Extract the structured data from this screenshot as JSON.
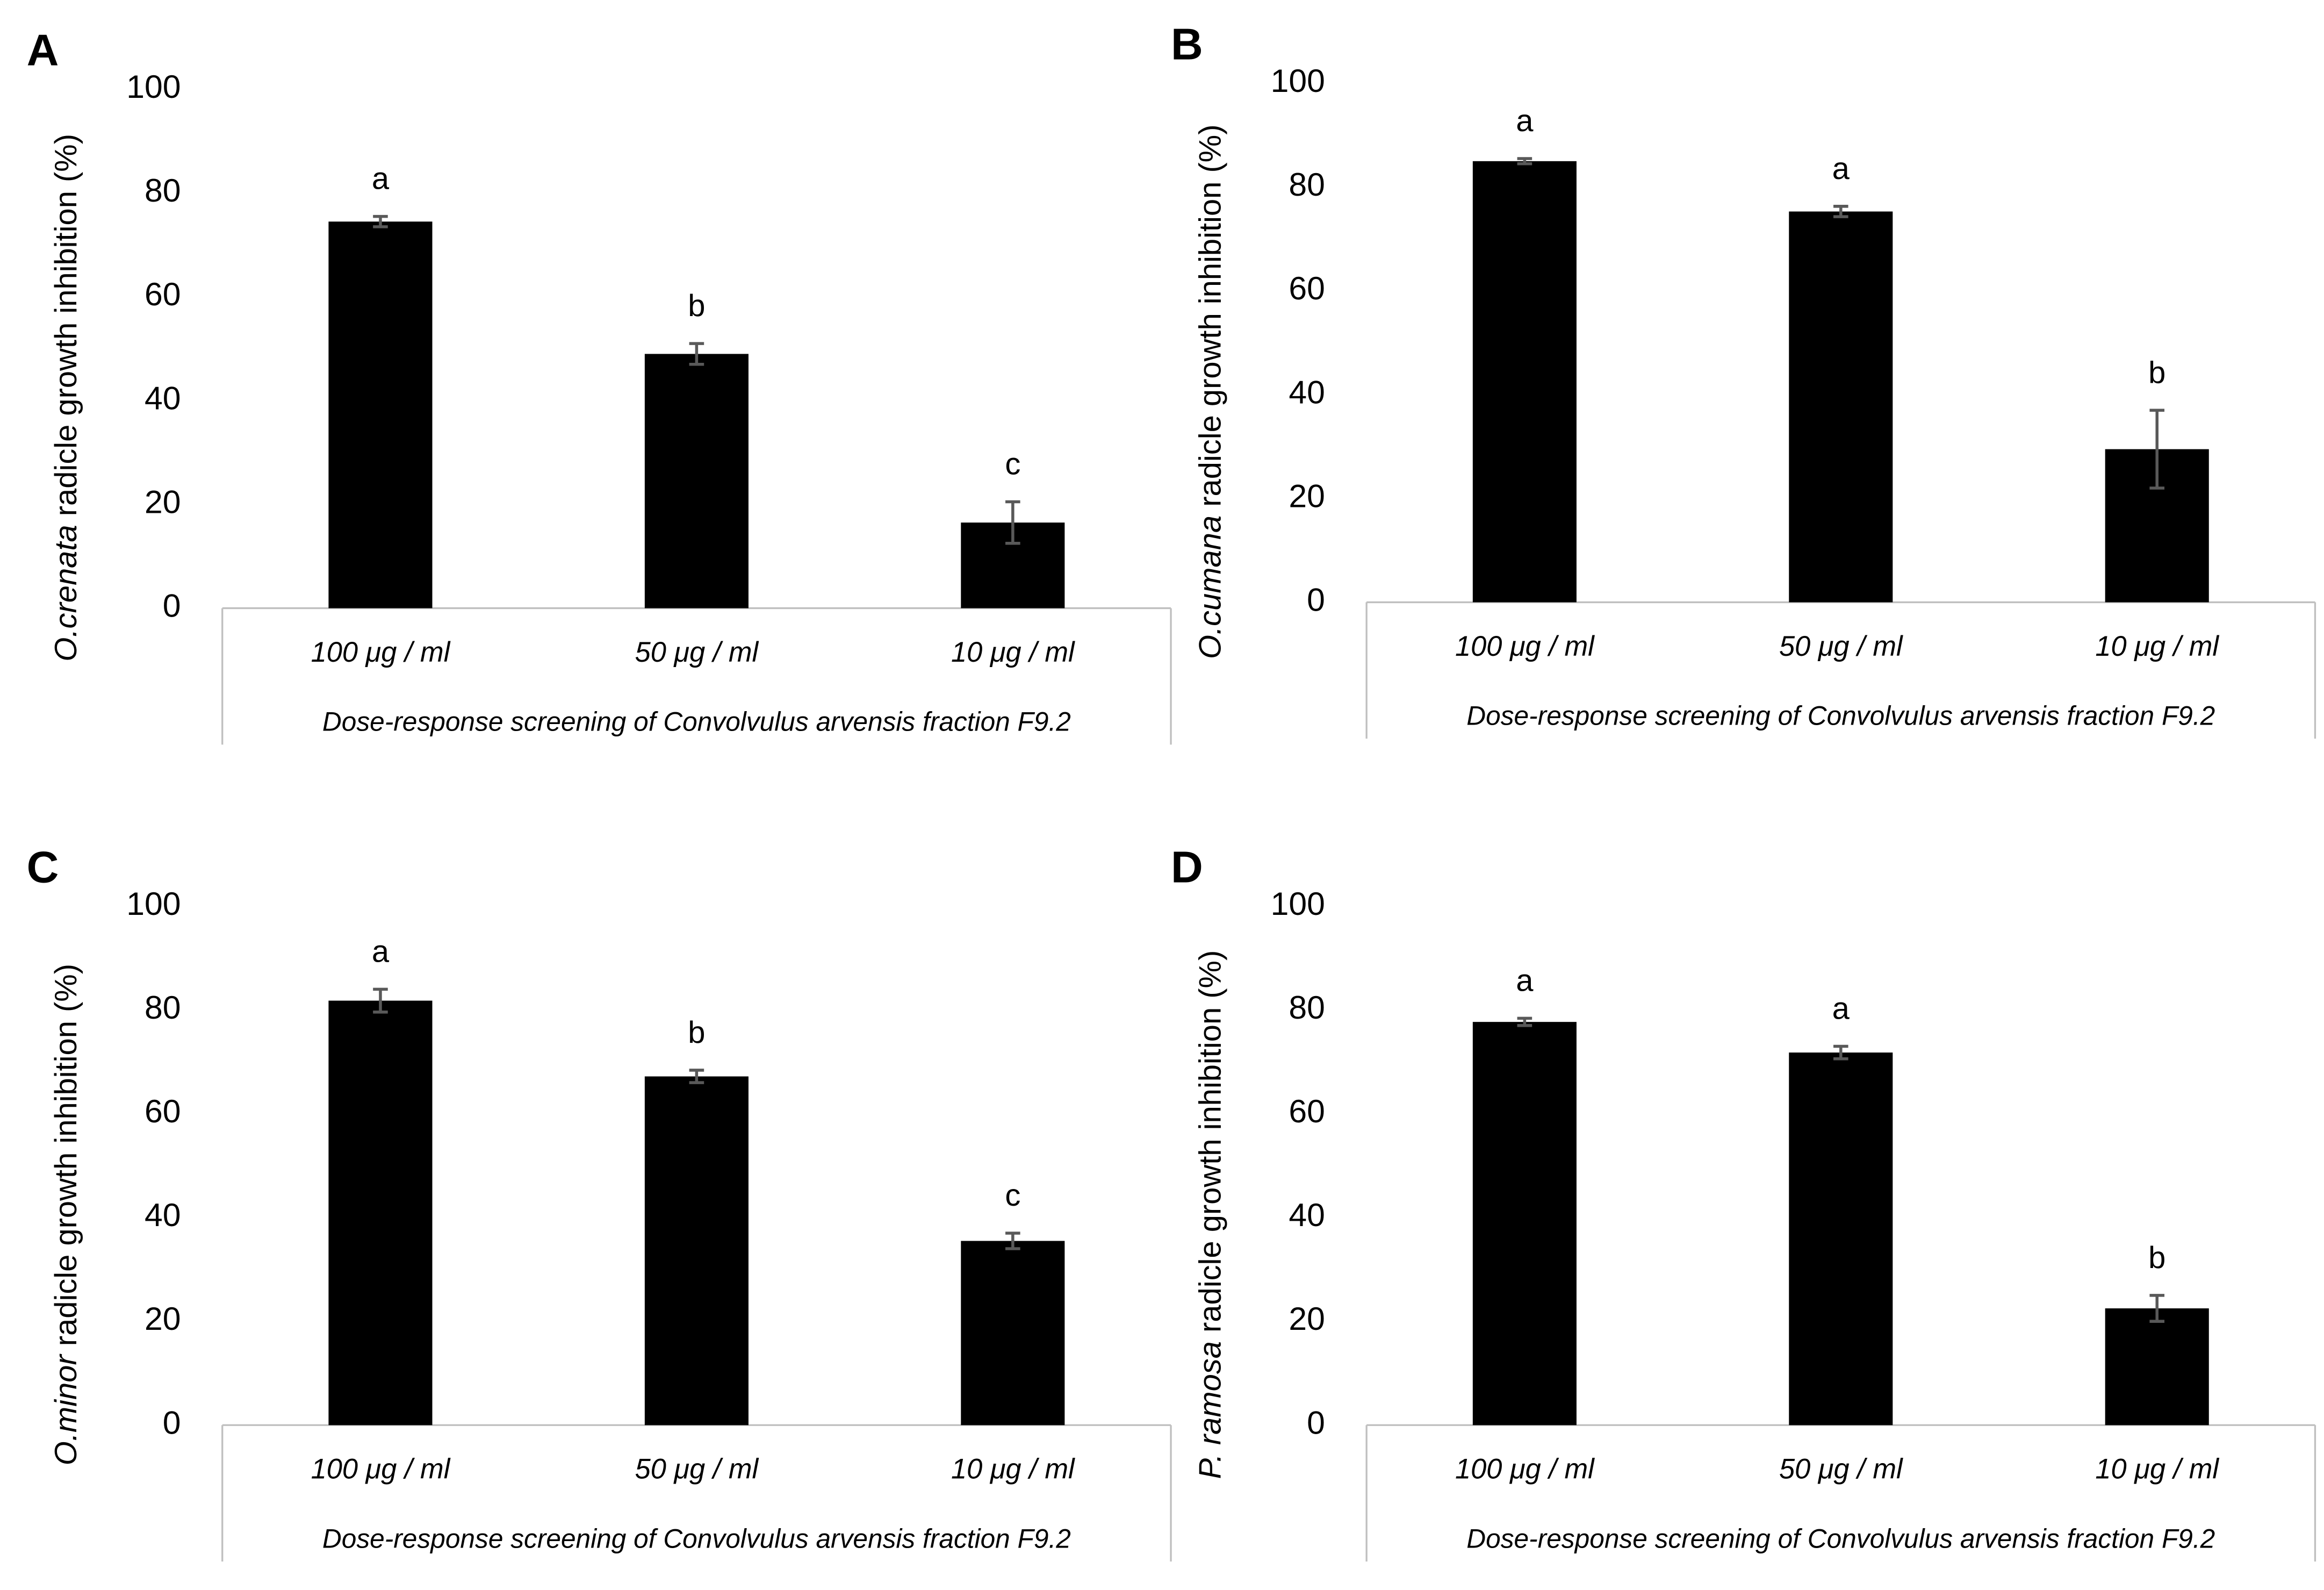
{
  "chart_data": [
    {
      "type": "bar",
      "panel": "A",
      "ylabel_species": "O.crenata",
      "ylabel": " radicle growth inhibition (%)",
      "xlabel": "Dose-response screening of Convolvulus arvensis fraction F9.2",
      "categories": [
        "100 μg / ml",
        "50 μg / ml",
        "10 μg / ml"
      ],
      "values": [
        74.5,
        49,
        16.5
      ],
      "errors": [
        1,
        2,
        4
      ],
      "letters": [
        "a",
        "b",
        "c"
      ],
      "color": "#000000",
      "ylim": [
        0,
        100
      ],
      "yticks": [
        0,
        20,
        40,
        60,
        80,
        100
      ]
    },
    {
      "type": "bar",
      "panel": "B",
      "ylabel_species": "O.cumana",
      "ylabel": " radicle growth inhibition (%)",
      "xlabel": "Dose-response screening of Convolvulus arvensis fraction F9.2",
      "categories": [
        "100 μg / ml",
        "50 μg / ml",
        "10 μg / ml"
      ],
      "values": [
        85,
        75.3,
        29.5
      ],
      "errors": [
        0.5,
        1,
        7.5
      ],
      "letters": [
        "a",
        "a",
        "b"
      ],
      "color": "#000000",
      "ylim": [
        0,
        100
      ],
      "yticks": [
        0,
        20,
        40,
        60,
        80,
        100
      ]
    },
    {
      "type": "bar",
      "panel": "C",
      "ylabel_species": "O.minor",
      "ylabel": " radicle growth inhibition (%)",
      "xlabel": "Dose-response screening of Convolvulus arvensis fraction F9.2",
      "categories": [
        "100 μg / ml",
        "50 μg / ml",
        "10 μg / ml"
      ],
      "values": [
        81.8,
        67.2,
        35.5
      ],
      "errors": [
        2.2,
        1.2,
        1.5
      ],
      "letters": [
        "a",
        "b",
        "c"
      ],
      "color": "#000000",
      "ylim": [
        0,
        100
      ],
      "yticks": [
        0,
        20,
        40,
        60,
        80,
        100
      ]
    },
    {
      "type": "bar",
      "panel": "D",
      "ylabel_species": "P. ramosa",
      "ylabel": " radicle growth inhibition (%)",
      "xlabel": "Dose-response screening of Convolvulus arvensis fraction F9.2",
      "categories": [
        "100 μg / ml",
        "50 μg / ml",
        "10 μg / ml"
      ],
      "values": [
        77.7,
        71.8,
        22.5
      ],
      "errors": [
        0.7,
        1.2,
        2.5
      ],
      "letters": [
        "a",
        "a",
        "b"
      ],
      "color": "#000000",
      "ylim": [
        0,
        100
      ],
      "yticks": [
        0,
        20,
        40,
        60,
        80,
        100
      ]
    }
  ]
}
